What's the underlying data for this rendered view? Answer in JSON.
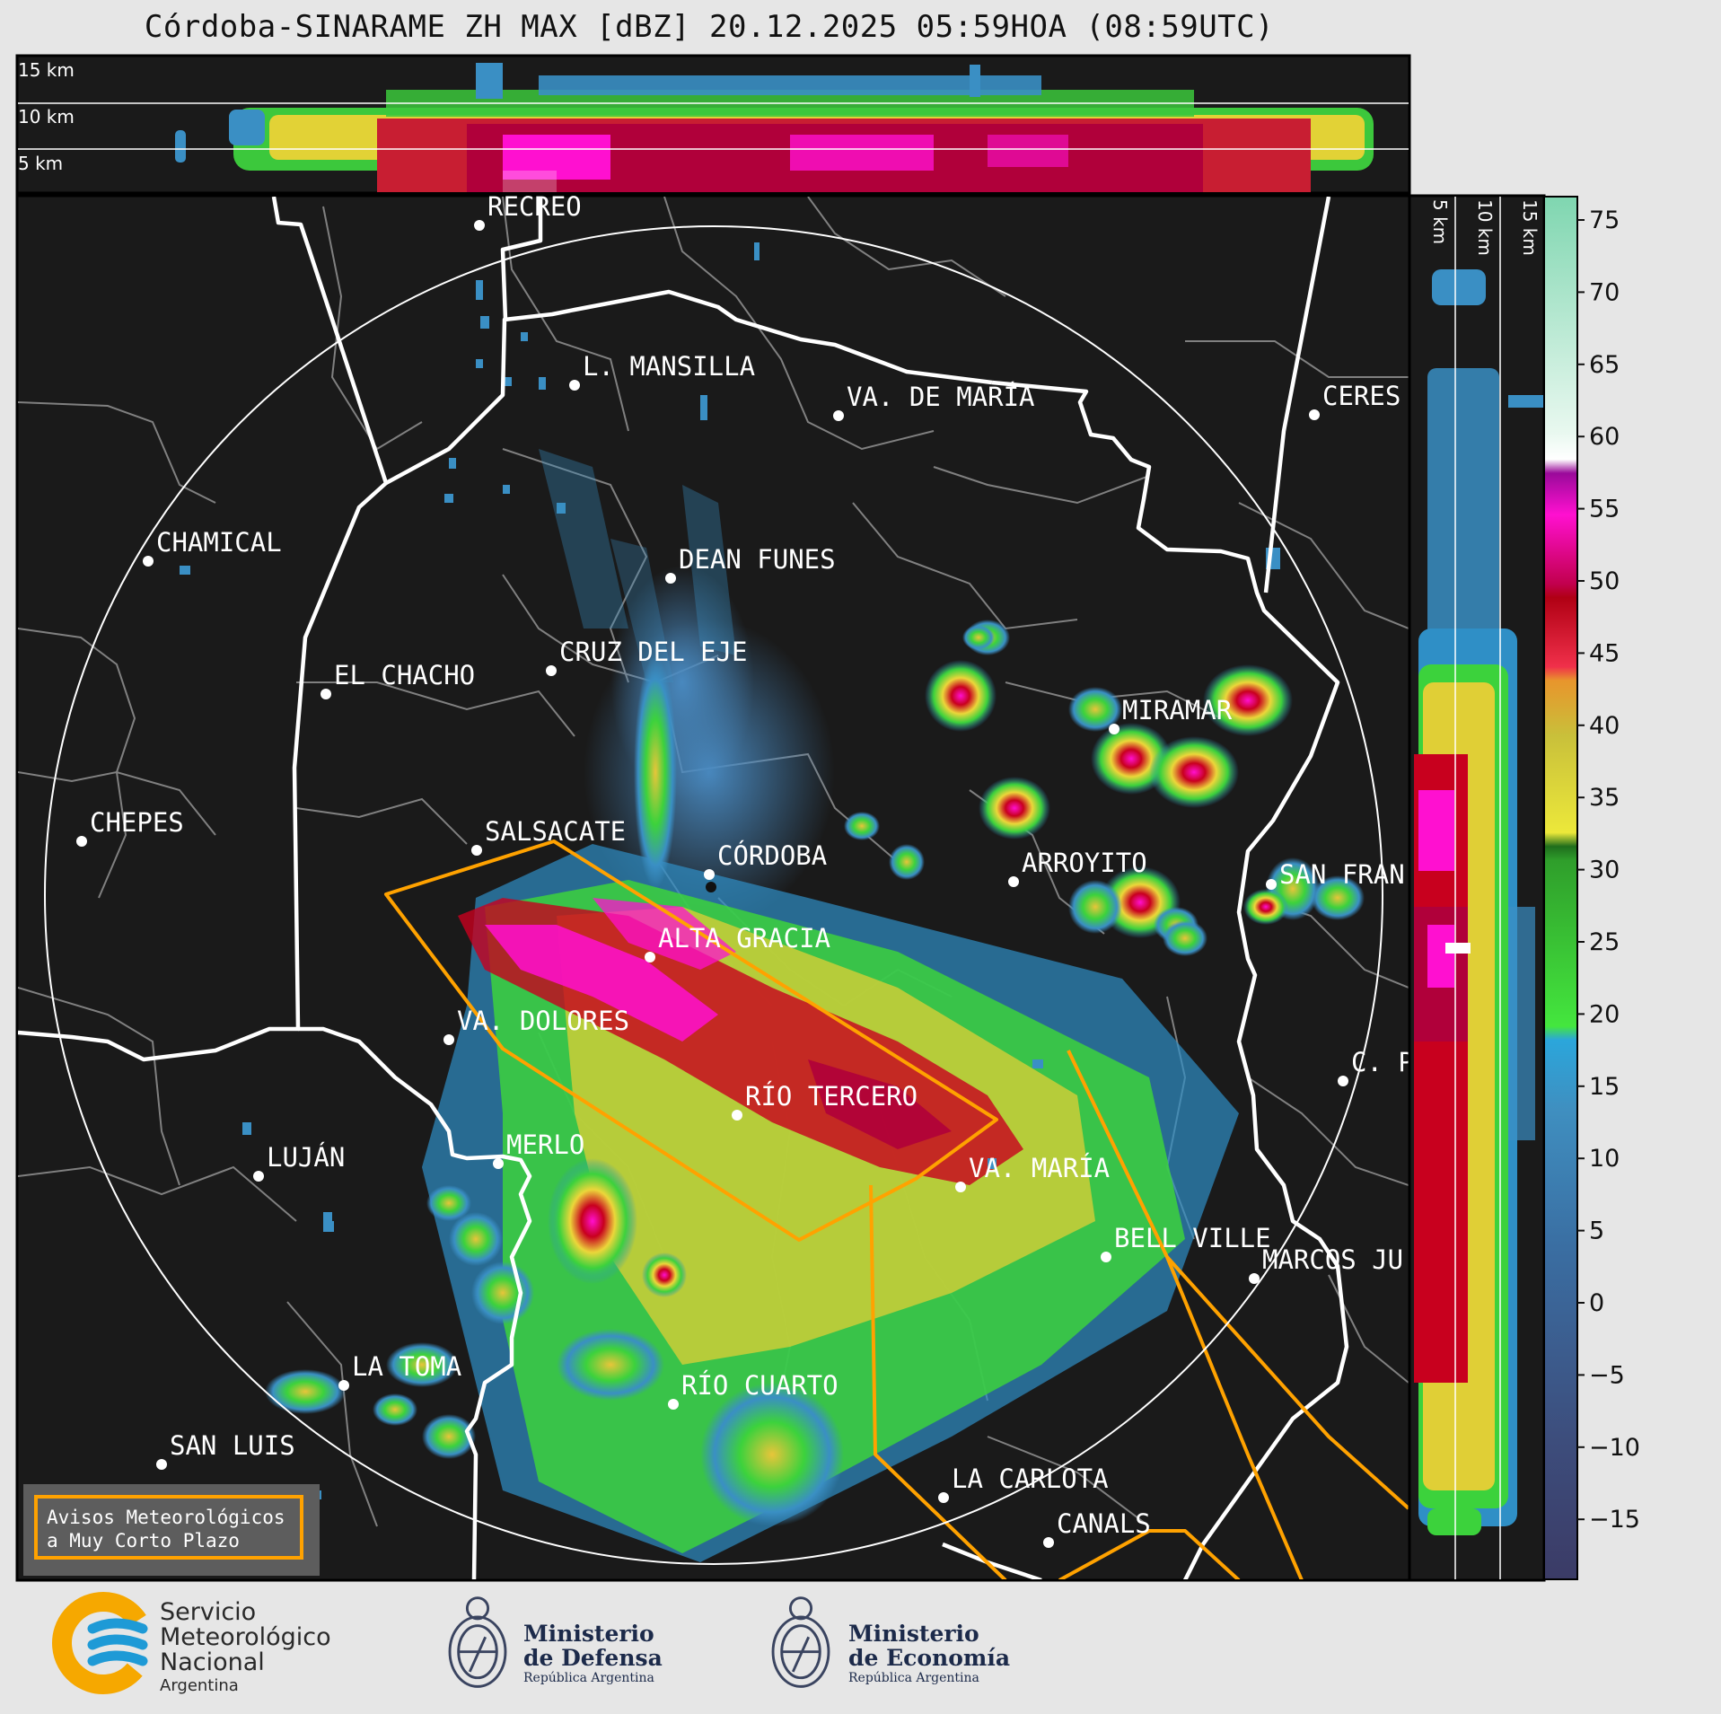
{
  "title": "Córdoba-SINARAME ZH MAX [dBZ] 20.12.2025 05:59HOA (08:59UTC)",
  "top_profile_altitudes": [
    "15 km",
    "10 km",
    "5 km"
  ],
  "side_profile_altitudes": [
    "5 km",
    "10 km",
    "15 km"
  ],
  "colorbar": {
    "ticks": [
      "75",
      "70",
      "65",
      "60",
      "55",
      "50",
      "45",
      "40",
      "35",
      "30",
      "25",
      "20",
      "15",
      "10",
      "5",
      "0",
      "−5",
      "−10",
      "−15"
    ]
  },
  "cities": [
    {
      "name": "RECREO"
    },
    {
      "name": "L. MANSILLA"
    },
    {
      "name": "VA. DE MARÍA"
    },
    {
      "name": "CERES"
    },
    {
      "name": "CHAMICAL"
    },
    {
      "name": "DEAN FUNES"
    },
    {
      "name": "CRUZ DEL EJE"
    },
    {
      "name": "EL CHACHO"
    },
    {
      "name": "MIRAMAR"
    },
    {
      "name": "CHEPES"
    },
    {
      "name": "SALSACATE"
    },
    {
      "name": "CÓRDOBA"
    },
    {
      "name": "ARROYITO"
    },
    {
      "name": "SAN FRAN"
    },
    {
      "name": "ALTA GRACIA"
    },
    {
      "name": "VA. DOLORES"
    },
    {
      "name": "C. P"
    },
    {
      "name": "RÍO TERCERO"
    },
    {
      "name": "LUJÁN"
    },
    {
      "name": "MERLO"
    },
    {
      "name": "VA. MARÍA"
    },
    {
      "name": "BELL VILLE"
    },
    {
      "name": "MARCOS JU"
    },
    {
      "name": "LA TOMA"
    },
    {
      "name": "RÍO CUARTO"
    },
    {
      "name": "SAN LUIS"
    },
    {
      "name": "LA CARLOTA"
    },
    {
      "name": "CANALS"
    }
  ],
  "warning_box": {
    "line1": "Avisos Meteorológicos",
    "line2": "a Muy Corto Plazo"
  },
  "logos": {
    "smn": {
      "line1": "Servicio",
      "line2": "Meteorológico",
      "line3": "Nacional",
      "line4": "Argentina"
    },
    "defensa": {
      "line1": "Ministerio",
      "line2": "de Defensa",
      "line3": "República Argentina"
    },
    "economia": {
      "line1": "Ministerio",
      "line2": "de Economía",
      "line3": "República Argentina"
    }
  },
  "colors": {
    "background": "#1a1a1a",
    "border_province": "#ffffff",
    "border_department": "#808080",
    "warning_polygon": "#ffa200",
    "smn_blue": "#1e9ad6",
    "smn_orange": "#f6a800"
  }
}
